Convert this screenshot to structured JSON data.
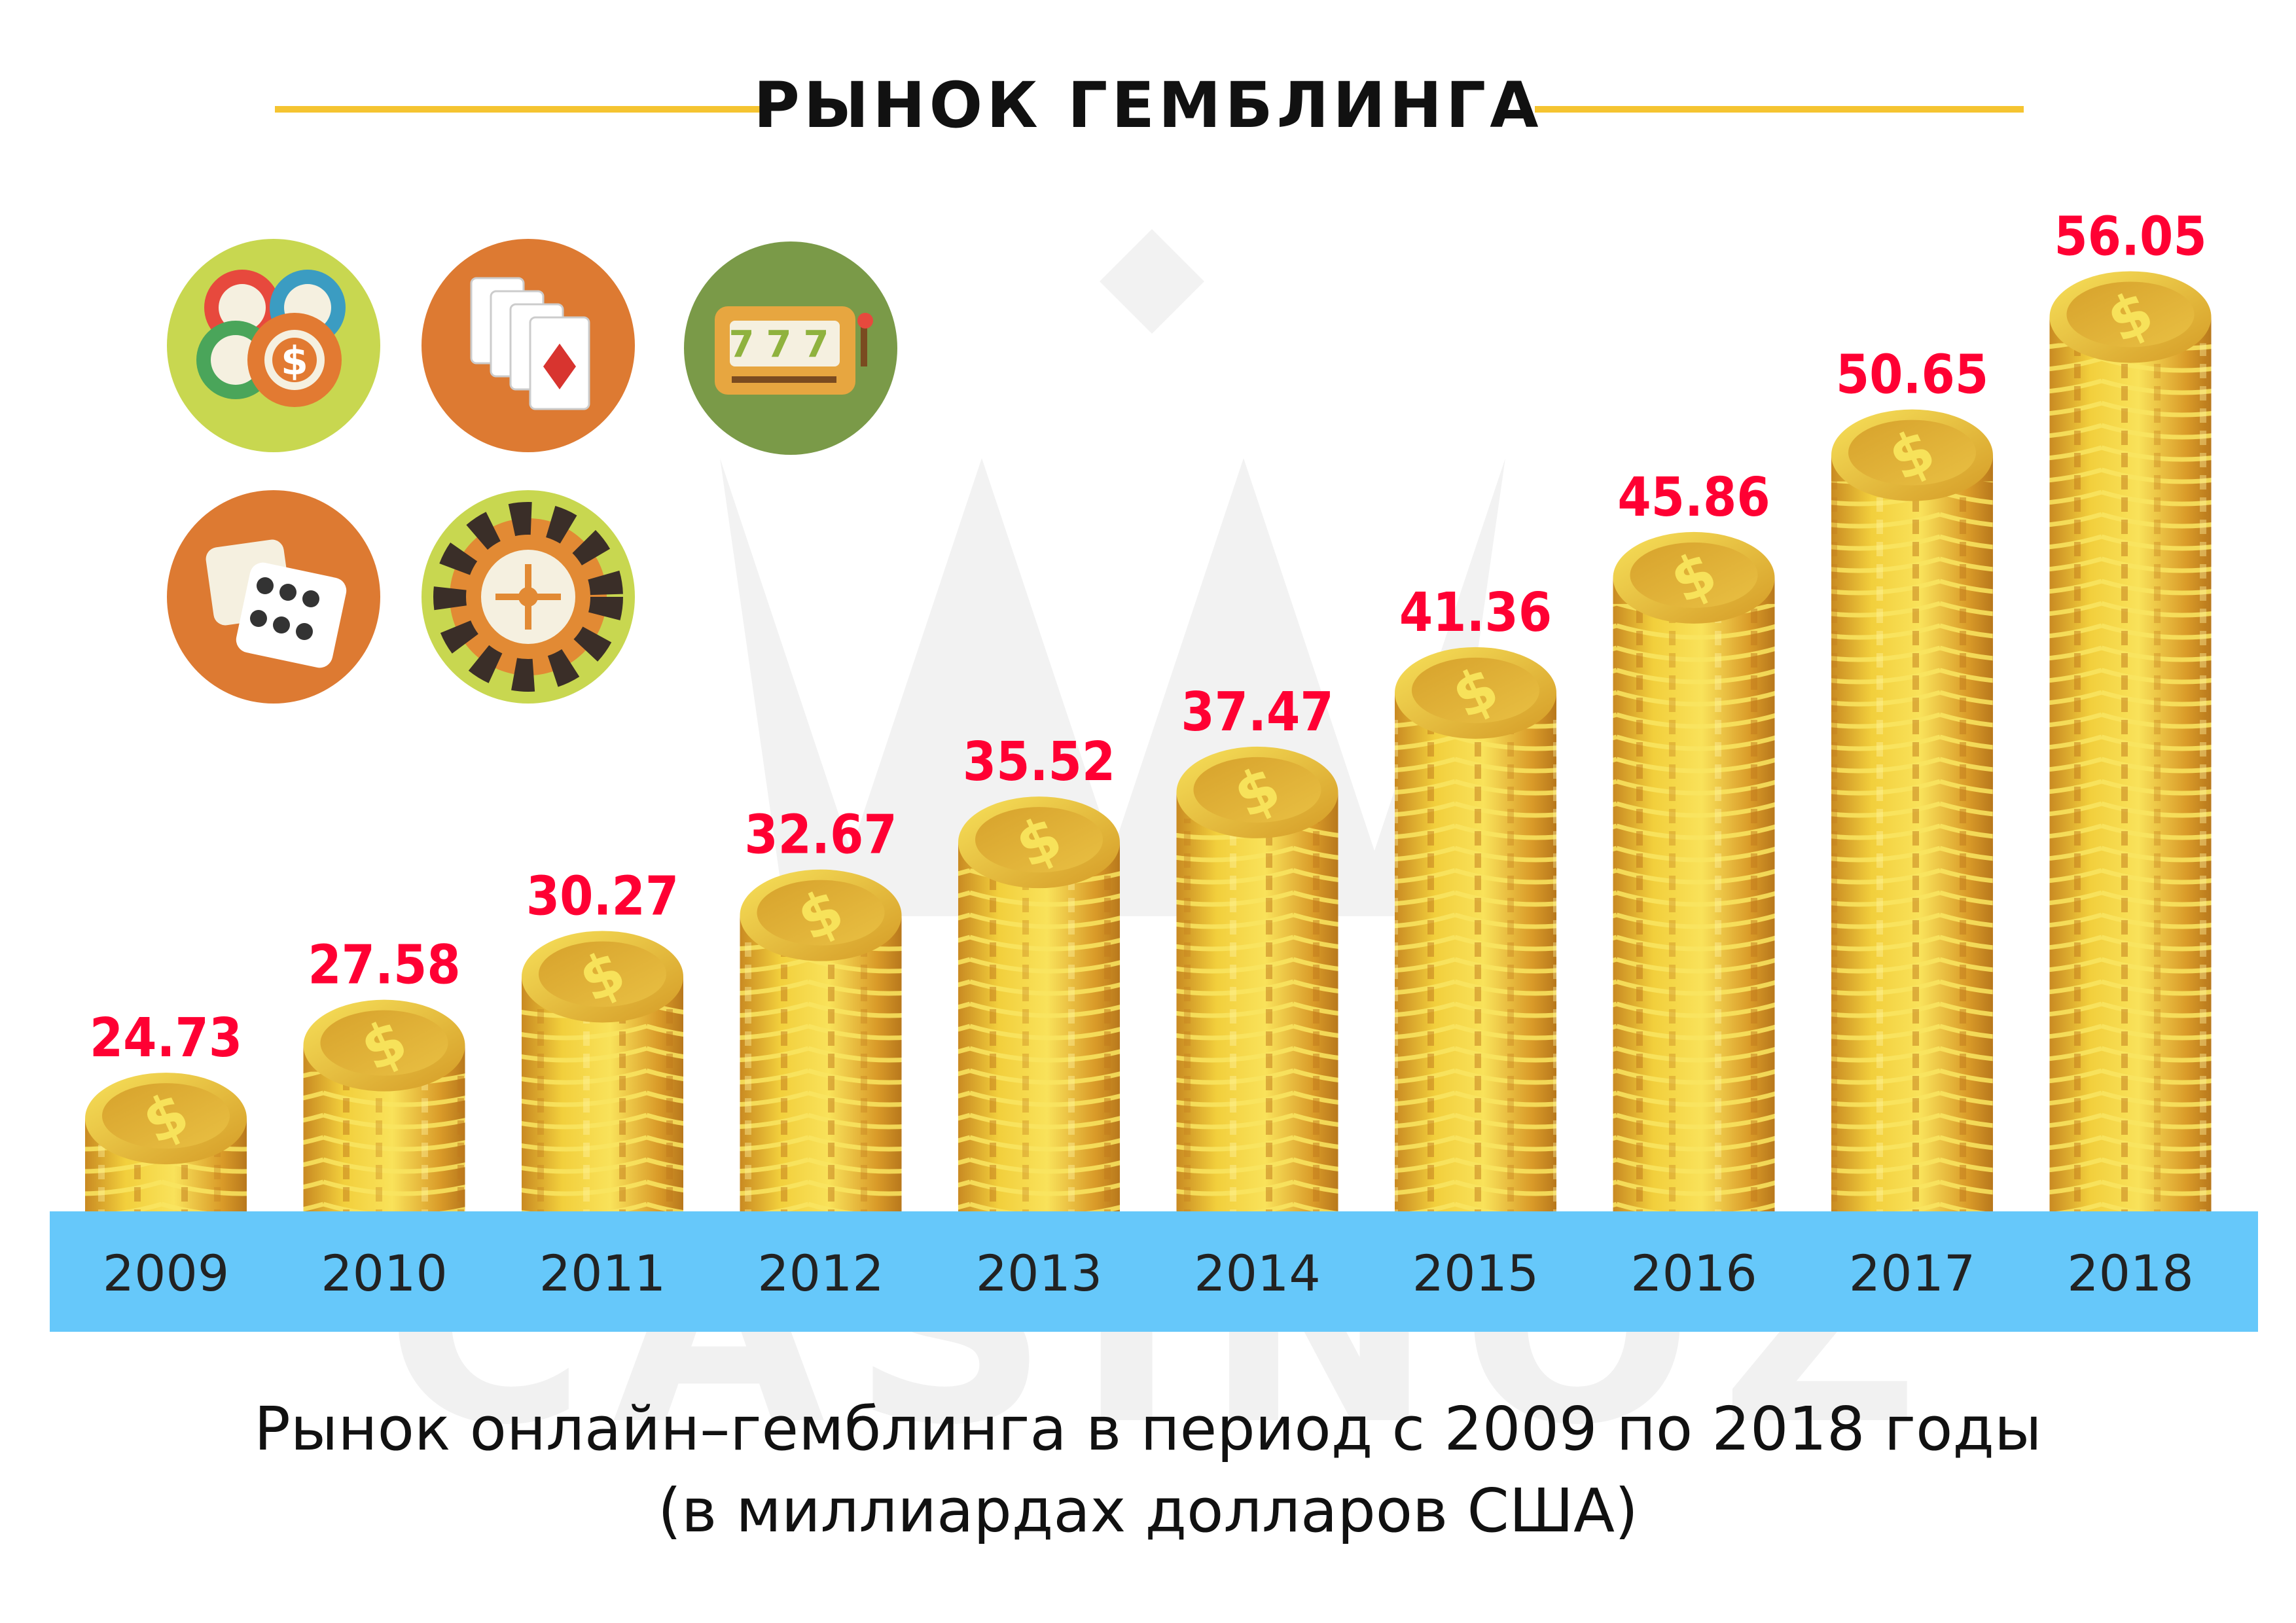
{
  "chart_data": {
    "type": "bar",
    "title": "РЫНОК ГЕМБЛИНГА",
    "subtitle": [
      "Рынок онлайн–гемблинга в период с 2009 по 2018 годы",
      "(в миллиардах долларов США)"
    ],
    "categories": [
      "2009",
      "2010",
      "2011",
      "2012",
      "2013",
      "2014",
      "2015",
      "2016",
      "2017",
      "2018"
    ],
    "values": [
      24.73,
      27.58,
      30.27,
      32.67,
      35.52,
      37.47,
      41.36,
      45.86,
      50.65,
      56.05
    ],
    "data_labels": [
      "24.73",
      "27.58",
      "30.27",
      "32.67",
      "35.52",
      "37.47",
      "41.36",
      "45.86",
      "50.65",
      "56.05"
    ],
    "bar_style": "coin-stacks",
    "grid": false,
    "colors": {
      "title_lines": "#f5c431",
      "labels": "#ff0033",
      "axis_band": "#66c8fa",
      "coin": "#e8b82e",
      "coin_light": "#f7e25a",
      "coin_dark": "#c6801f"
    },
    "icons": [
      "casino-chips-icon",
      "playing-cards-icon",
      "slot-machine-icon",
      "dice-icon",
      "roulette-icon"
    ],
    "slot_text": "777",
    "watermark": "CASINOZ"
  }
}
